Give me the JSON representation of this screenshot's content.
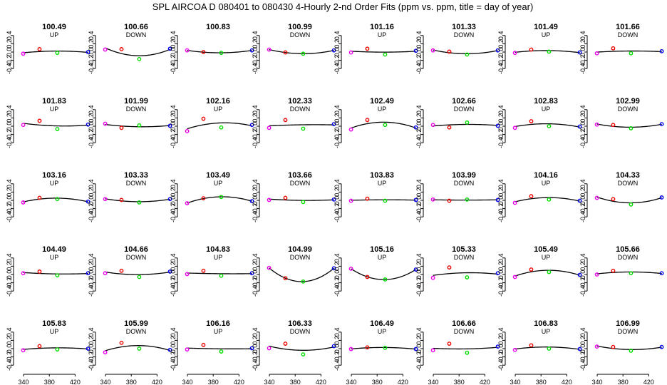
{
  "chart_data": {
    "type": "scatter",
    "title": "SPL   AIRCOA D   080401 to 080430   4-Hourly 2-nd Order Fits (ppm vs. ppm, title = day of year)",
    "xlabel": "",
    "ylabel": "",
    "xlim": [
      330,
      445
    ],
    "ylim": [
      -0.5,
      0.5
    ],
    "x_ticks": [
      "340",
      "380",
      "420"
    ],
    "y_ticks": [
      "-0.4",
      "-0.2",
      "0.0",
      "0.2",
      "0.4"
    ],
    "point_x": [
      339.5,
      364.8,
      392.4,
      440.1
    ],
    "point_colors": [
      "#ee00ee",
      "#ee0000",
      "#00dd00",
      "#0000ee"
    ],
    "fit_color": "#000000",
    "panels": [
      {
        "title": "100.49",
        "dir": "UP",
        "y": [
          -0.04,
          0.07,
          -0.02,
          0.0
        ]
      },
      {
        "title": "100.66",
        "dir": "DOWN",
        "y": [
          0.06,
          0.07,
          -0.17,
          0.08
        ]
      },
      {
        "title": "100.83",
        "dir": "",
        "y": [
          0.04,
          0.0,
          -0.02,
          0.04
        ]
      },
      {
        "title": "100.99",
        "dir": "DOWN",
        "y": [
          0.06,
          -0.01,
          -0.04,
          0.04
        ]
      },
      {
        "title": "101.16",
        "dir": "UP",
        "y": [
          -0.01,
          0.08,
          -0.06,
          0.03
        ]
      },
      {
        "title": "101.33",
        "dir": "DOWN",
        "y": [
          0.04,
          0.01,
          -0.06,
          0.04
        ]
      },
      {
        "title": "101.49",
        "dir": "UP",
        "y": [
          -0.02,
          0.06,
          0.01,
          -0.01
        ]
      },
      {
        "title": "101.66",
        "dir": "DOWN",
        "y": [
          -0.03,
          0.09,
          -0.03,
          0.02
        ]
      },
      {
        "title": "101.83",
        "dir": "UP",
        "y": [
          0.03,
          0.13,
          -0.07,
          0.04
        ]
      },
      {
        "title": "101.99",
        "dir": "DOWN",
        "y": [
          0.06,
          -0.04,
          0.02,
          0.01
        ]
      },
      {
        "title": "102.16",
        "dir": "UP",
        "y": [
          -0.12,
          0.18,
          -0.03,
          0.03
        ]
      },
      {
        "title": "102.33",
        "dir": "DOWN",
        "y": [
          -0.04,
          0.15,
          -0.06,
          0.05
        ]
      },
      {
        "title": "102.49",
        "dir": "UP",
        "y": [
          -0.08,
          0.15,
          0.03,
          -0.03
        ]
      },
      {
        "title": "102.66",
        "dir": "DOWN",
        "y": [
          0.03,
          -0.03,
          0.09,
          0.01
        ]
      },
      {
        "title": "102.83",
        "dir": "UP",
        "y": [
          -0.04,
          0.12,
          0.0,
          -0.01
        ]
      },
      {
        "title": "102.99",
        "dir": "DOWN",
        "y": [
          0.04,
          0.03,
          -0.05,
          0.05
        ]
      },
      {
        "title": "103.16",
        "dir": "UP",
        "y": [
          -0.05,
          0.06,
          0.03,
          -0.03
        ]
      },
      {
        "title": "103.33",
        "dir": "DOWN",
        "y": [
          0.03,
          0.01,
          -0.05,
          0.03
        ]
      },
      {
        "title": "103.49",
        "dir": "UP",
        "y": [
          -0.07,
          0.05,
          0.08,
          -0.02
        ]
      },
      {
        "title": "103.66",
        "dir": "DOWN",
        "y": [
          0.01,
          0.06,
          -0.04,
          0.02
        ]
      },
      {
        "title": "103.83",
        "dir": "UP",
        "y": [
          -0.01,
          0.04,
          -0.01,
          0.01
        ]
      },
      {
        "title": "103.99",
        "dir": "DOWN",
        "y": [
          0.02,
          -0.01,
          0.02,
          0.01
        ]
      },
      {
        "title": "104.16",
        "dir": "UP",
        "y": [
          -0.06,
          0.1,
          0.02,
          -0.01
        ]
      },
      {
        "title": "104.33",
        "dir": "DOWN",
        "y": [
          0.06,
          0.03,
          -0.1,
          0.07
        ]
      },
      {
        "title": "104.49",
        "dir": "UP",
        "y": [
          0.03,
          0.07,
          -0.02,
          0.03
        ]
      },
      {
        "title": "104.66",
        "dir": "DOWN",
        "y": [
          0.03,
          0.09,
          -0.06,
          0.07
        ]
      },
      {
        "title": "104.83",
        "dir": "UP",
        "y": [
          0.01,
          0.09,
          -0.03,
          0.03
        ]
      },
      {
        "title": "104.99",
        "dir": "DOWN",
        "y": [
          0.16,
          -0.09,
          -0.17,
          0.15
        ]
      },
      {
        "title": "105.16",
        "dir": "UP",
        "y": [
          0.14,
          -0.06,
          -0.12,
          0.12
        ]
      },
      {
        "title": "105.33",
        "dir": "DOWN",
        "y": [
          -0.08,
          0.17,
          -0.07,
          0.03
        ]
      },
      {
        "title": "105.49",
        "dir": "UP",
        "y": [
          -0.06,
          0.12,
          0.06,
          -0.01
        ]
      },
      {
        "title": "105.66",
        "dir": "DOWN",
        "y": [
          0.0,
          0.09,
          0.03,
          0.03
        ]
      },
      {
        "title": "105.83",
        "dir": "UP",
        "y": [
          -0.04,
          0.06,
          -0.02,
          0.0
        ]
      },
      {
        "title": "105.99",
        "dir": "DOWN",
        "y": [
          -0.09,
          0.14,
          0.0,
          -0.03
        ]
      },
      {
        "title": "106.16",
        "dir": "UP",
        "y": [
          -0.02,
          0.09,
          -0.07,
          0.01
        ]
      },
      {
        "title": "106.33",
        "dir": "DOWN",
        "y": [
          0.01,
          0.12,
          -0.14,
          0.06
        ]
      },
      {
        "title": "106.49",
        "dir": "UP",
        "y": [
          -0.01,
          0.03,
          0.02,
          -0.01
        ]
      },
      {
        "title": "106.66",
        "dir": "DOWN",
        "y": [
          -0.04,
          0.12,
          -0.1,
          0.05
        ]
      },
      {
        "title": "106.83",
        "dir": "UP",
        "y": [
          -0.03,
          0.08,
          0.0,
          -0.01
        ]
      },
      {
        "title": "106.99",
        "dir": "DOWN",
        "y": [
          0.05,
          0.04,
          -0.05,
          0.04
        ]
      }
    ]
  }
}
